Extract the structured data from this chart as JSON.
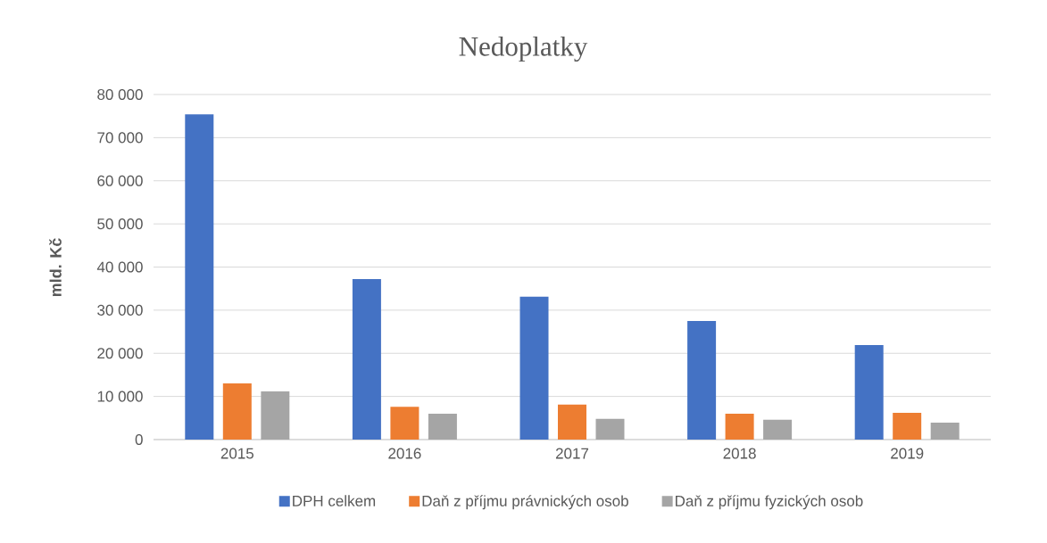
{
  "chart_data": {
    "type": "bar",
    "title": "Nedoplatky",
    "ylabel": "mld. Kč",
    "categories": [
      "2015",
      "2016",
      "2017",
      "2018",
      "2019"
    ],
    "series": [
      {
        "name": "DPH celkem",
        "color": "#4472c4",
        "values": [
          75400,
          37200,
          33100,
          27500,
          21900
        ]
      },
      {
        "name": "Daň z příjmu právnických osob",
        "color": "#ed7d31",
        "values": [
          13000,
          7600,
          8100,
          6000,
          6200
        ]
      },
      {
        "name": "Daň z příjmu fyzických osob",
        "color": "#a5a5a5",
        "values": [
          11200,
          6000,
          4800,
          4600,
          3900
        ]
      }
    ],
    "ylim": [
      0,
      80000
    ],
    "yticks": [
      0,
      {
        "value": 10000,
        "label": "10 000"
      },
      {
        "value": 20000,
        "label": "20 000"
      },
      {
        "value": 30000,
        "label": "30 000"
      },
      {
        "value": 40000,
        "label": "40 000"
      },
      {
        "value": 50000,
        "label": "50 000"
      },
      {
        "value": 60000,
        "label": "60 000"
      },
      {
        "value": 70000,
        "label": "70 000"
      },
      {
        "value": 80000,
        "label": "80 000"
      }
    ],
    "grid": "y",
    "legend": "bottom"
  }
}
